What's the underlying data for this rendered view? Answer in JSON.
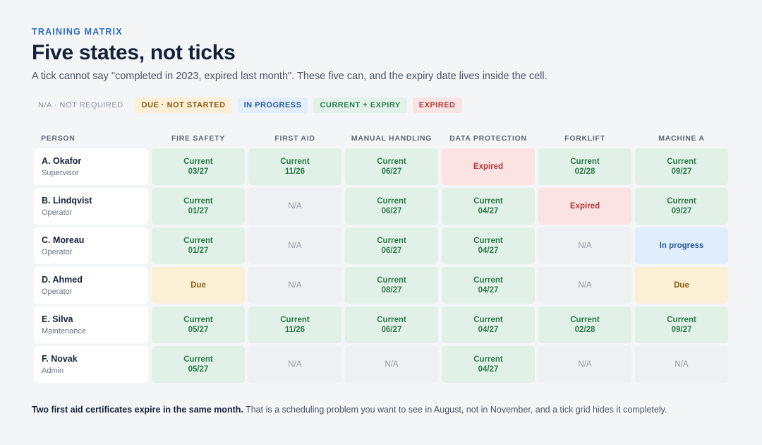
{
  "header": {
    "eyebrow": "TRAINING MATRIX",
    "title": "Five states, not ticks",
    "subtitle": "A tick cannot say \"completed in 2023, expired last month\". These five can, and the expiry date lives inside the cell."
  },
  "legend": [
    {
      "label": "N/A · NOT REQUIRED",
      "kind": "na"
    },
    {
      "label": "DUE · NOT STARTED",
      "kind": "due"
    },
    {
      "label": "IN PROGRESS",
      "kind": "prog"
    },
    {
      "label": "CURRENT + EXPIRY",
      "kind": "cur"
    },
    {
      "label": "EXPIRED",
      "kind": "exp"
    }
  ],
  "columns": [
    "PERSON",
    "FIRE SAFETY",
    "FIRST AID",
    "MANUAL HANDLING",
    "DATA PROTECTION",
    "FORKLIFT",
    "MACHINE A"
  ],
  "rows": [
    {
      "name": "A. Okafor",
      "role": "Supervisor",
      "cells": [
        {
          "state": "current",
          "label": "Current",
          "date": "03/27"
        },
        {
          "state": "current",
          "label": "Current",
          "date": "11/26"
        },
        {
          "state": "current",
          "label": "Current",
          "date": "06/27"
        },
        {
          "state": "expired",
          "label": "Expired",
          "date": ""
        },
        {
          "state": "current",
          "label": "Current",
          "date": "02/28"
        },
        {
          "state": "current",
          "label": "Current",
          "date": "09/27"
        }
      ]
    },
    {
      "name": "B. Lindqvist",
      "role": "Operator",
      "cells": [
        {
          "state": "current",
          "label": "Current",
          "date": "01/27"
        },
        {
          "state": "na",
          "label": "N/A",
          "date": ""
        },
        {
          "state": "current",
          "label": "Current",
          "date": "06/27"
        },
        {
          "state": "current",
          "label": "Current",
          "date": "04/27"
        },
        {
          "state": "expired",
          "label": "Expired",
          "date": ""
        },
        {
          "state": "current",
          "label": "Current",
          "date": "09/27"
        }
      ]
    },
    {
      "name": "C. Moreau",
      "role": "Operator",
      "cells": [
        {
          "state": "current",
          "label": "Current",
          "date": "01/27"
        },
        {
          "state": "na",
          "label": "N/A",
          "date": ""
        },
        {
          "state": "current",
          "label": "Current",
          "date": "06/27"
        },
        {
          "state": "current",
          "label": "Current",
          "date": "04/27"
        },
        {
          "state": "na",
          "label": "N/A",
          "date": ""
        },
        {
          "state": "progress",
          "label": "In progress",
          "date": ""
        }
      ]
    },
    {
      "name": "D. Ahmed",
      "role": "Operator",
      "cells": [
        {
          "state": "due",
          "label": "Due",
          "date": ""
        },
        {
          "state": "na",
          "label": "N/A",
          "date": ""
        },
        {
          "state": "current",
          "label": "Current",
          "date": "08/27"
        },
        {
          "state": "current",
          "label": "Current",
          "date": "04/27"
        },
        {
          "state": "na",
          "label": "N/A",
          "date": ""
        },
        {
          "state": "due",
          "label": "Due",
          "date": ""
        }
      ]
    },
    {
      "name": "E. Silva",
      "role": "Maintenance",
      "cells": [
        {
          "state": "current",
          "label": "Current",
          "date": "05/27"
        },
        {
          "state": "current",
          "label": "Current",
          "date": "11/26"
        },
        {
          "state": "current",
          "label": "Current",
          "date": "06/27"
        },
        {
          "state": "current",
          "label": "Current",
          "date": "04/27"
        },
        {
          "state": "current",
          "label": "Current",
          "date": "02/28"
        },
        {
          "state": "current",
          "label": "Current",
          "date": "09/27"
        }
      ]
    },
    {
      "name": "F. Novak",
      "role": "Admin",
      "cells": [
        {
          "state": "current",
          "label": "Current",
          "date": "05/27"
        },
        {
          "state": "na",
          "label": "N/A",
          "date": ""
        },
        {
          "state": "na",
          "label": "N/A",
          "date": ""
        },
        {
          "state": "current",
          "label": "Current",
          "date": "04/27"
        },
        {
          "state": "na",
          "label": "N/A",
          "date": ""
        },
        {
          "state": "na",
          "label": "N/A",
          "date": ""
        }
      ]
    }
  ],
  "footnote": {
    "bold": "Two first aid certificates expire in the same month.",
    "rest": " That is a scheduling problem you want to see in August, not in November, and a tick grid hides it completely."
  }
}
